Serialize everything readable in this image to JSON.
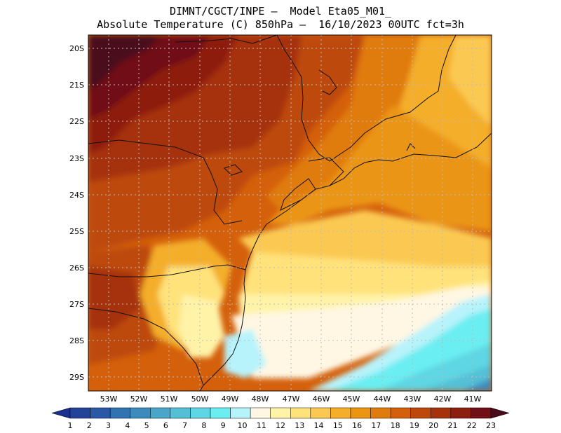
{
  "header": {
    "line1": "DIMNT/CGCT/INPE –  Model Eta05_M01_",
    "line2": "Absolute Temperature (C) 850hPa –  16/10/2023 00UTC fct=3h"
  },
  "map": {
    "lat_labels": [
      "20S",
      "21S",
      "22S",
      "23S",
      "24S",
      "25S",
      "26S",
      "27S",
      "28S",
      "29S"
    ],
    "lon_labels": [
      "53W",
      "52W",
      "51W",
      "50W",
      "49W",
      "48W",
      "47W",
      "46W",
      "45W",
      "44W",
      "43W",
      "42W",
      "41W"
    ]
  },
  "colorbar": {
    "labels": [
      "1",
      "2",
      "3",
      "4",
      "5",
      "6",
      "7",
      "8",
      "9",
      "10",
      "11",
      "12",
      "13",
      "14",
      "15",
      "16",
      "17",
      "18",
      "19",
      "20",
      "21",
      "22",
      "23"
    ],
    "colors": [
      "#1a2f8f",
      "#23439b",
      "#2a58a6",
      "#3172b1",
      "#3d8bbd",
      "#4aa6c9",
      "#55bfd6",
      "#5fd6e3",
      "#6aeef2",
      "#b7f3fb",
      "#fff7e3",
      "#fff3a8",
      "#ffe27a",
      "#fbc951",
      "#f4ae2a",
      "#eb9512",
      "#e07b0e",
      "#d4600b",
      "#bd480a",
      "#a6320b",
      "#8d1f0f",
      "#700f18",
      "#4a0a1a"
    ]
  },
  "colors": {
    "frame": "#000000",
    "grid": "#bbbbbb",
    "coast": "#111111"
  }
}
